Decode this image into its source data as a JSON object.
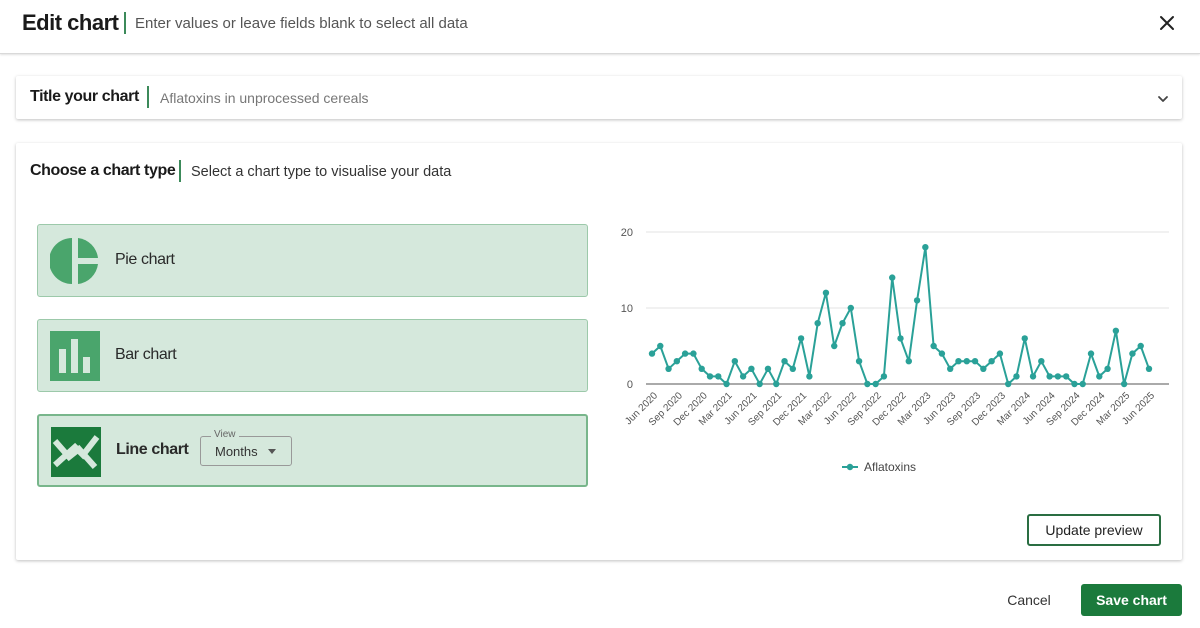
{
  "header": {
    "title": "Edit chart",
    "subtitle": "Enter values or leave fields blank to select all data"
  },
  "title_section": {
    "label": "Title your chart",
    "value": "Aflatoxins in unprocessed cereals"
  },
  "chart_type_section": {
    "label": "Choose a chart type",
    "subtitle": "Select a chart type to visualise your data",
    "options": [
      {
        "label": "Pie chart",
        "icon": "pie-chart-icon"
      },
      {
        "label": "Bar chart",
        "icon": "bar-chart-icon"
      },
      {
        "label": "Line chart",
        "icon": "line-chart-icon",
        "selected": true
      }
    ],
    "view_select": {
      "legend": "View",
      "value": "Months"
    }
  },
  "buttons": {
    "update_preview": "Update preview",
    "cancel": "Cancel",
    "save": "Save chart"
  },
  "colors": {
    "accent": "#3c8a5a",
    "option_bg": "#d5e8dc",
    "series": "#2aa198",
    "save_bg": "#1b7a3c"
  },
  "chart_data": {
    "type": "line",
    "x_tick_labels": [
      "Jun 2020",
      "Sep 2020",
      "Dec 2020",
      "Mar 2021",
      "Jun 2021",
      "Sep 2021",
      "Dec 2021",
      "Mar 2022",
      "Jun 2022",
      "Sep 2022",
      "Dec 2022",
      "Mar 2023",
      "Jun 2023",
      "Sep 2023",
      "Dec 2023",
      "Mar 2024",
      "Jun 2024",
      "Sep 2024",
      "Dec 2024",
      "Mar 2025",
      "Jun 2025"
    ],
    "y_ticks": [
      0,
      10,
      20
    ],
    "ylim": [
      0,
      20
    ],
    "grid": true,
    "legend_position": "bottom",
    "series": [
      {
        "name": "Aflatoxins",
        "values": [
          4,
          5,
          2,
          3,
          4,
          4,
          2,
          1,
          1,
          0,
          3,
          1,
          2,
          0,
          2,
          0,
          3,
          2,
          6,
          1,
          8,
          12,
          5,
          8,
          10,
          3,
          0,
          0,
          1,
          14,
          6,
          3,
          11,
          18,
          5,
          4,
          2,
          3,
          3,
          3,
          2,
          3,
          4,
          0,
          1,
          6,
          1,
          3,
          1,
          1,
          1,
          0,
          0,
          4,
          1,
          2,
          7,
          0,
          4,
          5,
          2
        ]
      }
    ]
  }
}
